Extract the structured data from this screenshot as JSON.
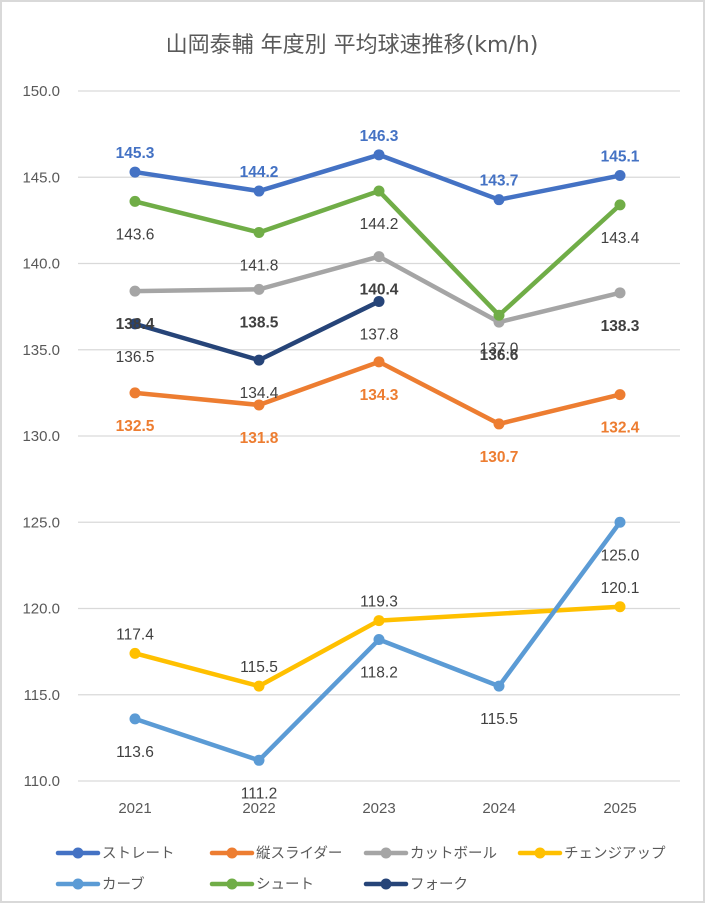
{
  "chart_data": {
    "type": "line",
    "title": "山岡泰輔 年度別 平均球速推移(km/h)",
    "xlabel": "",
    "ylabel": "",
    "categories": [
      "2021",
      "2022",
      "2023",
      "2024",
      "2025"
    ],
    "ylim": [
      110,
      150
    ],
    "yticks": [
      150,
      145,
      140,
      135,
      130,
      125,
      120,
      115,
      110
    ],
    "ytick_labels": [
      "150.0",
      "145.0",
      "140.0",
      "135.0",
      "130.0",
      "125.0",
      "120.0",
      "115.0",
      "110.0"
    ],
    "grid": true,
    "legend_position": "bottom",
    "series": [
      {
        "name": "ストレート",
        "color": "#4472C4",
        "values": [
          145.3,
          144.2,
          146.3,
          143.7,
          145.1
        ],
        "label_position": "above",
        "label_color": "#4472C4",
        "label_bold": true
      },
      {
        "name": "縦スライダー",
        "color": "#ED7D31",
        "values": [
          132.5,
          131.8,
          134.3,
          130.7,
          132.4
        ],
        "label_position": "below",
        "label_color": "#ED7D31",
        "label_bold": true
      },
      {
        "name": "カットボール",
        "color": "#A5A5A5",
        "values": [
          138.4,
          138.5,
          140.4,
          136.6,
          138.3
        ],
        "label_position": "below",
        "label_color": "#404040",
        "label_bold": true
      },
      {
        "name": "チェンジアップ",
        "color": "#FFC000",
        "values": [
          117.4,
          115.5,
          119.3,
          null,
          120.1
        ],
        "label_position": "above",
        "label_color": "#404040",
        "label_bold": false
      },
      {
        "name": "カーブ",
        "color": "#5B9BD5",
        "values": [
          113.6,
          111.2,
          118.2,
          115.5,
          125.0
        ],
        "label_position": "below",
        "label_color": "#404040",
        "label_bold": false
      },
      {
        "name": "シュート",
        "color": "#70AD47",
        "values": [
          143.6,
          141.8,
          144.2,
          137.0,
          143.4
        ],
        "label_position": "below",
        "label_color": "#404040",
        "label_bold": false
      },
      {
        "name": "フォーク",
        "color": "#264478",
        "values": [
          136.5,
          134.4,
          137.8,
          null,
          null
        ],
        "label_position": "below",
        "label_color": "#404040",
        "label_bold": false
      }
    ]
  }
}
